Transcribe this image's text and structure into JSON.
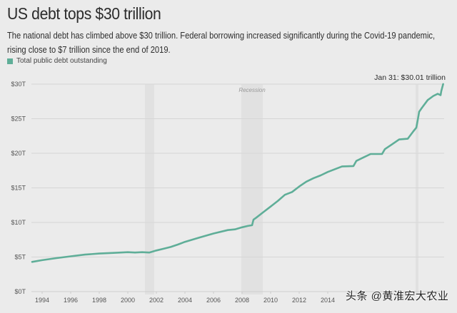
{
  "header": {
    "title": "US debt tops $30 trillion",
    "subtitle": "The national debt has climbed above $30 trillion. Federal borrowing increased significantly during the Covid-19 pandemic, rising close to $7 trillion since the end of 2019."
  },
  "legend": {
    "label": "Total public debt outstanding",
    "color": "#5fae98"
  },
  "watermark": "头条 @黄淮宏大农业",
  "chart_data": {
    "type": "line",
    "title": "US debt tops $30 trillion",
    "xlabel": "",
    "ylabel": "",
    "xlim": [
      1993.25,
      2022.2
    ],
    "ylim": [
      0,
      30
    ],
    "grid": true,
    "legend_position": "top-left",
    "x_ticks": [
      1994,
      1996,
      1998,
      2000,
      2002,
      2004,
      2006,
      2008,
      2010,
      2012,
      2014,
      2016,
      2018,
      2020,
      2022
    ],
    "x_tick_labels": [
      "1994",
      "1996",
      "1998",
      "2000",
      "2002",
      "2004",
      "2006",
      "2008",
      "2010",
      "2012",
      "2014",
      "",
      "",
      "",
      ""
    ],
    "y_ticks": [
      0,
      5,
      10,
      15,
      20,
      25,
      30
    ],
    "y_tick_labels": [
      "$0T",
      "$5T",
      "$10T",
      "$15T",
      "$20T",
      "$25T",
      "$30T"
    ],
    "recessions": [
      {
        "start": 2001.2,
        "end": 2001.85,
        "label": ""
      },
      {
        "start": 2007.95,
        "end": 2009.45,
        "label": "Recession"
      },
      {
        "start": 2020.15,
        "end": 2020.35,
        "label": ""
      }
    ],
    "annotations": [
      {
        "x": 2022.08,
        "y": 30.01,
        "text": "Jan 31: $30.01 trillion"
      }
    ],
    "series": [
      {
        "name": "Total public debt outstanding",
        "color": "#5fae98",
        "x": [
          1993.3,
          1994,
          1995,
          1996,
          1997,
          1998,
          1999,
          2000,
          2000.5,
          2001,
          2001.5,
          2002,
          2002.5,
          2003,
          2003.5,
          2004,
          2005,
          2006,
          2007,
          2007.5,
          2008,
          2008.4,
          2008.7,
          2008.8,
          2009,
          2009.5,
          2010,
          2010.5,
          2011,
          2011.5,
          2012,
          2012.5,
          2013,
          2013.5,
          2014,
          2014.5,
          2015,
          2015.8,
          2016,
          2016.5,
          2017,
          2017.8,
          2018,
          2018.5,
          2019,
          2019.6,
          2020,
          2020.2,
          2020.3,
          2020.4,
          2020.6,
          2021,
          2021.4,
          2021.7,
          2021.9,
          2021.95,
          2022.08
        ],
        "values": [
          4.3,
          4.55,
          4.85,
          5.1,
          5.35,
          5.5,
          5.6,
          5.7,
          5.65,
          5.7,
          5.65,
          5.95,
          6.2,
          6.45,
          6.8,
          7.2,
          7.8,
          8.4,
          8.9,
          9.0,
          9.3,
          9.5,
          9.6,
          10.4,
          10.7,
          11.5,
          12.3,
          13.1,
          14.0,
          14.4,
          15.2,
          15.9,
          16.4,
          16.8,
          17.3,
          17.7,
          18.1,
          18.15,
          18.9,
          19.4,
          19.9,
          19.9,
          20.6,
          21.3,
          22.0,
          22.1,
          23.2,
          23.7,
          24.8,
          26.0,
          26.6,
          27.7,
          28.3,
          28.6,
          28.4,
          29.0,
          30.01
        ]
      }
    ]
  }
}
